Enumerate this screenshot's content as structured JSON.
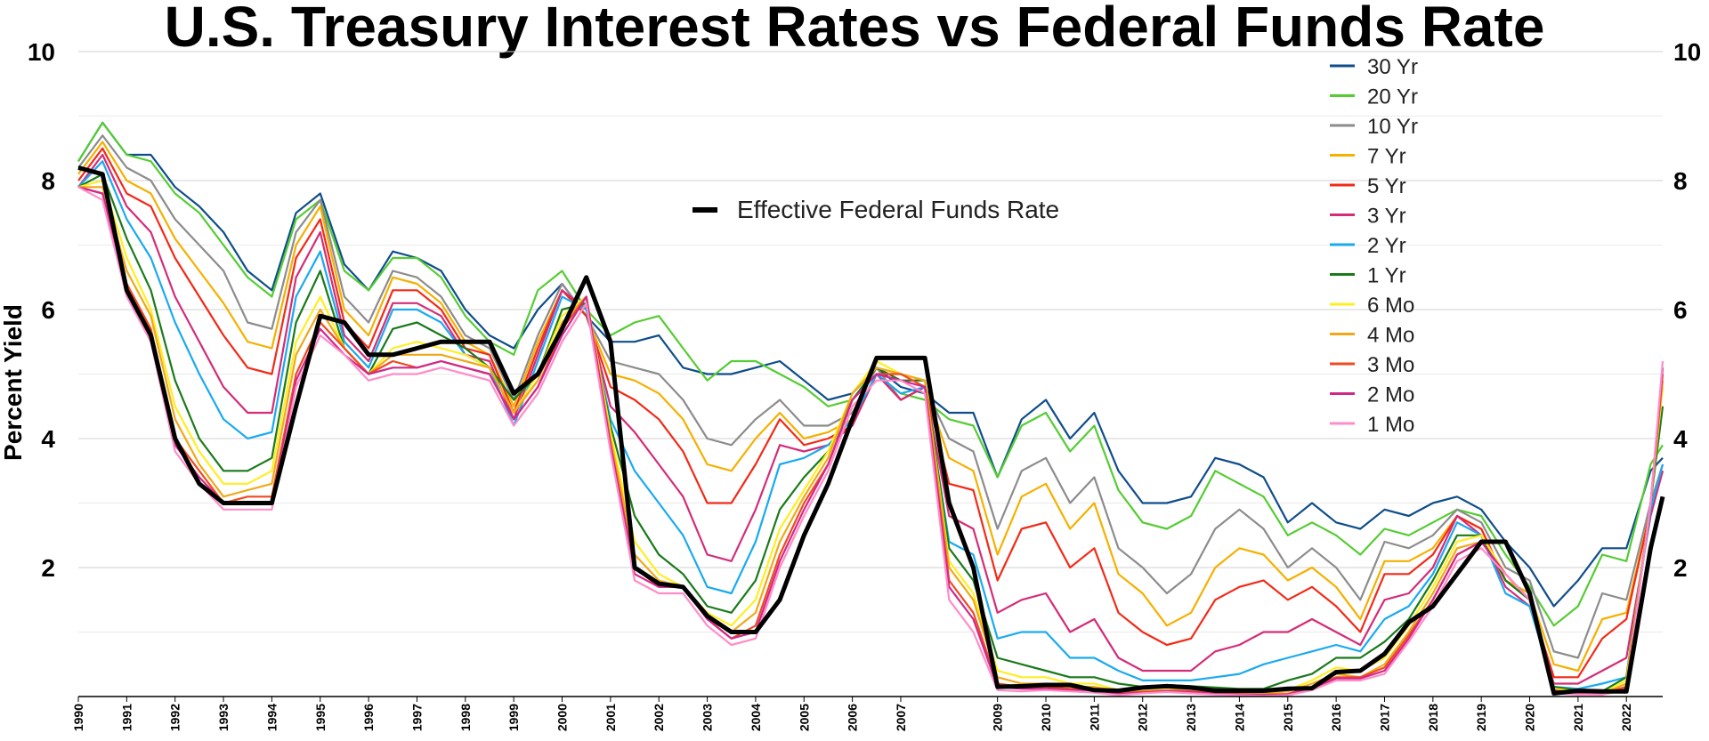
{
  "chart_data": {
    "type": "line",
    "title": "U.S. Treasury Interest Rates vs Federal Funds Rate",
    "ylabel": "Percent Yield",
    "xlabel": "",
    "ylim": [
      0,
      10
    ],
    "xlim": [
      1990,
      2022.75
    ],
    "yticks": [
      "2",
      "4",
      "6",
      "8",
      "10"
    ],
    "xticks": [
      "1990",
      "1991",
      "1992",
      "1993",
      "1994",
      "1995",
      "1996",
      "1997",
      "1998",
      "1999",
      "2000",
      "2001",
      "2002",
      "2003",
      "2004",
      "2005",
      "2006",
      "2007",
      "2009",
      "2010",
      "2011",
      "2012",
      "2013",
      "2014",
      "2015",
      "2016",
      "2017",
      "2018",
      "2019",
      "2020",
      "2021",
      "2022"
    ],
    "grid": true,
    "legend_position": "top-right",
    "x": [
      1990,
      1990.5,
      1991,
      1991.5,
      1992,
      1992.5,
      1993,
      1993.5,
      1994,
      1994.5,
      1995,
      1995.5,
      1996,
      1996.5,
      1997,
      1997.5,
      1998,
      1998.5,
      1999,
      1999.5,
      2000,
      2000.5,
      2001,
      2001.5,
      2002,
      2002.5,
      2003,
      2003.5,
      2004,
      2004.5,
      2005,
      2005.5,
      2006,
      2006.5,
      2007,
      2007.5,
      2008,
      2008.5,
      2009,
      2009.5,
      2010,
      2010.5,
      2011,
      2011.5,
      2012,
      2012.5,
      2013,
      2013.5,
      2014,
      2014.5,
      2015,
      2015.5,
      2016,
      2016.5,
      2017,
      2017.5,
      2018,
      2018.5,
      2019,
      2019.5,
      2020,
      2020.5,
      2021,
      2021.5,
      2022,
      2022.5,
      2022.75
    ],
    "series": [
      {
        "name": "30 Yr",
        "color": "#0f4d8a",
        "values": [
          8.3,
          8.9,
          8.4,
          8.4,
          7.9,
          7.6,
          7.2,
          6.6,
          6.3,
          7.5,
          7.8,
          6.7,
          6.3,
          6.9,
          6.8,
          6.6,
          6.0,
          5.6,
          5.4,
          6.0,
          6.4,
          5.9,
          5.5,
          5.5,
          5.6,
          5.1,
          5.0,
          5.0,
          5.1,
          5.2,
          4.9,
          4.6,
          4.7,
          5.1,
          4.8,
          4.7,
          4.4,
          4.4,
          3.4,
          4.3,
          4.6,
          4.0,
          4.4,
          3.5,
          3.0,
          3.0,
          3.1,
          3.7,
          3.6,
          3.4,
          2.7,
          3.0,
          2.7,
          2.6,
          2.9,
          2.8,
          3.0,
          3.1,
          2.9,
          2.4,
          2.0,
          1.4,
          1.8,
          2.3,
          2.3,
          3.5,
          3.7
        ]
      },
      {
        "name": "20 Yr",
        "color": "#55cc33",
        "values": [
          8.3,
          8.9,
          8.4,
          8.3,
          7.8,
          7.5,
          7.0,
          6.5,
          6.2,
          7.4,
          7.7,
          6.6,
          6.3,
          6.8,
          6.8,
          6.5,
          5.9,
          5.5,
          5.3,
          6.3,
          6.6,
          6.0,
          5.6,
          5.8,
          5.9,
          5.4,
          4.9,
          5.2,
          5.2,
          5.0,
          4.8,
          4.5,
          4.6,
          5.0,
          4.7,
          4.6,
          4.3,
          4.2,
          3.4,
          4.2,
          4.4,
          3.8,
          4.2,
          3.2,
          2.7,
          2.6,
          2.8,
          3.5,
          3.3,
          3.1,
          2.5,
          2.7,
          2.5,
          2.2,
          2.6,
          2.5,
          2.7,
          2.9,
          2.8,
          2.2,
          1.7,
          1.1,
          1.4,
          2.2,
          2.1,
          3.6,
          3.9
        ]
      },
      {
        "name": "10 Yr",
        "color": "#8c8c8c",
        "values": [
          8.2,
          8.7,
          8.2,
          8.0,
          7.4,
          7.0,
          6.6,
          5.8,
          5.7,
          7.2,
          7.7,
          6.2,
          5.8,
          6.6,
          6.5,
          6.2,
          5.6,
          5.4,
          4.6,
          5.6,
          6.4,
          5.9,
          5.2,
          5.1,
          5.0,
          4.6,
          4.0,
          3.9,
          4.3,
          4.6,
          4.2,
          4.2,
          4.4,
          5.1,
          4.6,
          4.8,
          4.0,
          3.8,
          2.6,
          3.5,
          3.7,
          3.0,
          3.4,
          2.3,
          2.0,
          1.6,
          1.9,
          2.6,
          2.9,
          2.6,
          2.0,
          2.3,
          2.0,
          1.5,
          2.4,
          2.3,
          2.5,
          2.9,
          2.7,
          2.0,
          1.8,
          0.7,
          0.6,
          1.6,
          1.5,
          3.0,
          3.6
        ]
      },
      {
        "name": "7 Yr",
        "color": "#f5b000",
        "values": [
          8.1,
          8.6,
          8.0,
          7.8,
          7.1,
          6.6,
          6.1,
          5.5,
          5.4,
          7.0,
          7.6,
          6.0,
          5.6,
          6.5,
          6.4,
          6.1,
          5.5,
          5.3,
          4.5,
          5.5,
          6.3,
          5.9,
          5.0,
          4.9,
          4.7,
          4.3,
          3.6,
          3.5,
          4.0,
          4.4,
          4.0,
          4.1,
          4.3,
          5.0,
          4.6,
          4.8,
          3.7,
          3.5,
          2.2,
          3.1,
          3.3,
          2.6,
          3.0,
          1.9,
          1.6,
          1.1,
          1.3,
          2.0,
          2.3,
          2.2,
          1.8,
          2.0,
          1.7,
          1.2,
          2.1,
          2.1,
          2.3,
          2.8,
          2.6,
          1.8,
          1.6,
          0.5,
          0.4,
          1.2,
          1.3,
          2.9,
          3.5
        ]
      },
      {
        "name": "5 Yr",
        "color": "#f22a18",
        "values": [
          8.0,
          8.5,
          7.8,
          7.6,
          6.8,
          6.2,
          5.6,
          5.1,
          5.0,
          6.8,
          7.4,
          5.8,
          5.4,
          6.3,
          6.3,
          6.0,
          5.4,
          5.3,
          4.4,
          5.4,
          6.3,
          5.9,
          4.8,
          4.6,
          4.3,
          3.8,
          3.0,
          3.0,
          3.6,
          4.3,
          3.9,
          4.0,
          4.2,
          5.0,
          4.6,
          4.8,
          3.3,
          3.2,
          1.8,
          2.6,
          2.7,
          2.0,
          2.3,
          1.3,
          1.0,
          0.8,
          0.9,
          1.5,
          1.7,
          1.8,
          1.5,
          1.7,
          1.4,
          1.0,
          1.9,
          1.9,
          2.2,
          2.8,
          2.6,
          1.8,
          1.5,
          0.3,
          0.3,
          0.9,
          1.2,
          2.9,
          3.5
        ]
      },
      {
        "name": "3 Yr",
        "color": "#d42c78",
        "values": [
          7.9,
          8.4,
          7.6,
          7.2,
          6.2,
          5.5,
          4.8,
          4.4,
          4.4,
          6.5,
          7.2,
          5.6,
          5.2,
          6.1,
          6.1,
          5.9,
          5.3,
          5.2,
          4.3,
          5.3,
          6.3,
          6.0,
          4.5,
          4.1,
          3.6,
          3.1,
          2.2,
          2.1,
          2.9,
          3.9,
          3.8,
          3.9,
          4.2,
          5.0,
          4.6,
          4.8,
          2.8,
          2.6,
          1.3,
          1.5,
          1.6,
          1.0,
          1.2,
          0.6,
          0.4,
          0.4,
          0.4,
          0.7,
          0.8,
          1.0,
          1.0,
          1.2,
          1.0,
          0.8,
          1.5,
          1.6,
          2.0,
          2.8,
          2.5,
          1.7,
          1.4,
          0.2,
          0.2,
          0.4,
          0.6,
          2.8,
          3.5
        ]
      },
      {
        "name": "2 Yr",
        "color": "#1aaaf0",
        "values": [
          7.9,
          8.3,
          7.4,
          6.8,
          5.8,
          5.0,
          4.3,
          4.0,
          4.1,
          6.2,
          6.9,
          5.5,
          5.1,
          6.0,
          6.0,
          5.8,
          5.3,
          5.1,
          4.2,
          5.2,
          6.2,
          6.0,
          4.3,
          3.5,
          3.0,
          2.5,
          1.7,
          1.6,
          2.4,
          3.6,
          3.7,
          3.9,
          4.3,
          5.0,
          4.7,
          4.8,
          2.4,
          2.2,
          0.9,
          1.0,
          1.0,
          0.6,
          0.6,
          0.4,
          0.25,
          0.25,
          0.25,
          0.3,
          0.35,
          0.5,
          0.6,
          0.7,
          0.8,
          0.7,
          1.2,
          1.4,
          1.9,
          2.7,
          2.5,
          1.6,
          1.4,
          0.15,
          0.12,
          0.2,
          0.3,
          2.9,
          3.6
        ]
      },
      {
        "name": "1 Yr",
        "color": "#1a7a1a",
        "values": [
          7.9,
          8.1,
          7.1,
          6.3,
          4.9,
          4.0,
          3.5,
          3.5,
          3.7,
          5.8,
          6.6,
          5.4,
          5.0,
          5.7,
          5.8,
          5.6,
          5.4,
          5.1,
          4.6,
          5.0,
          6.0,
          6.1,
          4.2,
          2.8,
          2.2,
          1.9,
          1.4,
          1.3,
          1.8,
          2.9,
          3.4,
          3.8,
          4.6,
          5.1,
          4.9,
          4.9,
          2.3,
          1.8,
          0.6,
          0.5,
          0.4,
          0.3,
          0.3,
          0.2,
          0.15,
          0.18,
          0.16,
          0.14,
          0.12,
          0.12,
          0.25,
          0.35,
          0.6,
          0.6,
          0.85,
          1.2,
          1.8,
          2.5,
          2.5,
          1.8,
          1.5,
          0.15,
          0.1,
          0.08,
          0.3,
          3.0,
          4.5
        ]
      },
      {
        "name": "6 Mo",
        "color": "#ffee22",
        "values": [
          7.9,
          8.0,
          6.8,
          6.0,
          4.5,
          3.8,
          3.3,
          3.3,
          3.5,
          5.5,
          6.2,
          5.4,
          5.0,
          5.4,
          5.5,
          5.4,
          5.3,
          5.1,
          4.4,
          5.0,
          5.9,
          6.2,
          4.1,
          2.4,
          1.9,
          1.7,
          1.3,
          1.1,
          1.5,
          2.6,
          3.2,
          3.8,
          4.7,
          5.2,
          5.0,
          4.9,
          2.1,
          1.6,
          0.4,
          0.3,
          0.3,
          0.2,
          0.2,
          0.1,
          0.1,
          0.1,
          0.12,
          0.1,
          0.08,
          0.07,
          0.1,
          0.25,
          0.45,
          0.4,
          0.6,
          1.1,
          1.7,
          2.4,
          2.5,
          1.9,
          1.5,
          0.12,
          0.08,
          0.05,
          0.25,
          3.0,
          4.8
        ]
      },
      {
        "name": "4 Mo",
        "color": "#f0a818",
        "values": [
          7.9,
          7.9,
          6.6,
          5.9,
          4.3,
          3.6,
          3.1,
          3.2,
          3.3,
          5.3,
          6.0,
          5.4,
          5.0,
          5.3,
          5.3,
          5.3,
          5.2,
          5.1,
          4.4,
          4.9,
          5.8,
          6.2,
          4.0,
          2.2,
          1.8,
          1.7,
          1.2,
          1.0,
          1.3,
          2.4,
          3.1,
          3.7,
          4.7,
          5.1,
          5.0,
          4.9,
          2.0,
          1.5,
          0.3,
          0.2,
          0.2,
          0.15,
          0.15,
          0.08,
          0.08,
          0.1,
          0.1,
          0.07,
          0.05,
          0.05,
          0.08,
          0.2,
          0.35,
          0.3,
          0.5,
          1.0,
          1.6,
          2.3,
          2.4,
          1.9,
          1.5,
          0.1,
          0.06,
          0.04,
          0.2,
          3.0,
          4.9
        ]
      },
      {
        "name": "3 Mo",
        "color": "#f04a20",
        "values": [
          7.9,
          7.8,
          6.4,
          5.7,
          4.0,
          3.5,
          3.0,
          3.1,
          3.1,
          5.0,
          5.8,
          5.4,
          5.0,
          5.2,
          5.1,
          5.2,
          5.1,
          5.0,
          4.3,
          4.8,
          5.7,
          6.2,
          3.9,
          2.0,
          1.7,
          1.7,
          1.2,
          0.9,
          1.1,
          2.2,
          3.0,
          3.6,
          4.6,
          5.0,
          5.0,
          4.8,
          1.8,
          1.3,
          0.2,
          0.15,
          0.15,
          0.12,
          0.12,
          0.05,
          0.07,
          0.09,
          0.08,
          0.05,
          0.04,
          0.03,
          0.04,
          0.15,
          0.3,
          0.3,
          0.45,
          0.95,
          1.5,
          2.2,
          2.4,
          1.9,
          1.5,
          0.1,
          0.05,
          0.04,
          0.15,
          3.0,
          5.0
        ]
      },
      {
        "name": "2 Mo",
        "color": "#d0288a",
        "values": [
          7.9,
          7.8,
          6.3,
          5.6,
          3.9,
          3.4,
          3.0,
          3.0,
          3.0,
          4.9,
          5.7,
          5.3,
          5.0,
          5.1,
          5.1,
          5.2,
          5.1,
          5.0,
          4.3,
          4.8,
          5.6,
          6.2,
          3.9,
          1.9,
          1.7,
          1.7,
          1.2,
          0.9,
          1.0,
          2.1,
          2.9,
          3.6,
          4.6,
          5.0,
          4.9,
          4.8,
          1.7,
          1.2,
          0.15,
          0.12,
          0.12,
          0.1,
          0.1,
          0.04,
          0.06,
          0.08,
          0.07,
          0.04,
          0.03,
          0.02,
          0.03,
          0.12,
          0.28,
          0.28,
          0.4,
          0.9,
          1.5,
          2.2,
          2.4,
          1.9,
          1.5,
          0.09,
          0.04,
          0.03,
          0.12,
          3.0,
          5.1
        ]
      },
      {
        "name": "1 Mo",
        "color": "#ff8cc8",
        "values": [
          7.9,
          7.7,
          6.2,
          5.5,
          3.8,
          3.3,
          2.9,
          2.9,
          2.9,
          4.8,
          5.6,
          5.3,
          4.9,
          5.0,
          5.0,
          5.1,
          5.0,
          4.9,
          4.2,
          4.7,
          5.5,
          6.1,
          3.8,
          1.8,
          1.6,
          1.6,
          1.1,
          0.8,
          0.9,
          2.0,
          2.8,
          3.5,
          4.5,
          4.9,
          4.9,
          4.7,
          1.5,
          1.0,
          0.1,
          0.08,
          0.1,
          0.08,
          0.06,
          0.02,
          0.05,
          0.07,
          0.05,
          0.03,
          0.02,
          0.01,
          0.02,
          0.1,
          0.25,
          0.25,
          0.35,
          0.85,
          1.4,
          2.1,
          2.3,
          1.9,
          1.5,
          0.05,
          0.03,
          0.03,
          0.1,
          3.0,
          5.2
        ]
      },
      {
        "name": "Effective Federal Funds Rate",
        "color": "#000000",
        "values": [
          8.2,
          8.1,
          6.3,
          5.6,
          4.0,
          3.3,
          3.0,
          3.0,
          3.0,
          4.5,
          5.9,
          5.8,
          5.3,
          5.3,
          5.4,
          5.5,
          5.5,
          5.5,
          4.7,
          5.0,
          5.7,
          6.5,
          5.5,
          2.0,
          1.75,
          1.7,
          1.25,
          1.0,
          1.0,
          1.5,
          2.5,
          3.3,
          4.3,
          5.25,
          5.25,
          5.25,
          3.0,
          2.0,
          0.15,
          0.16,
          0.18,
          0.18,
          0.1,
          0.09,
          0.14,
          0.16,
          0.14,
          0.09,
          0.09,
          0.09,
          0.12,
          0.13,
          0.38,
          0.4,
          0.66,
          1.15,
          1.4,
          1.9,
          2.4,
          2.4,
          1.6,
          0.05,
          0.09,
          0.08,
          0.08,
          2.3,
          3.1
        ]
      }
    ]
  }
}
